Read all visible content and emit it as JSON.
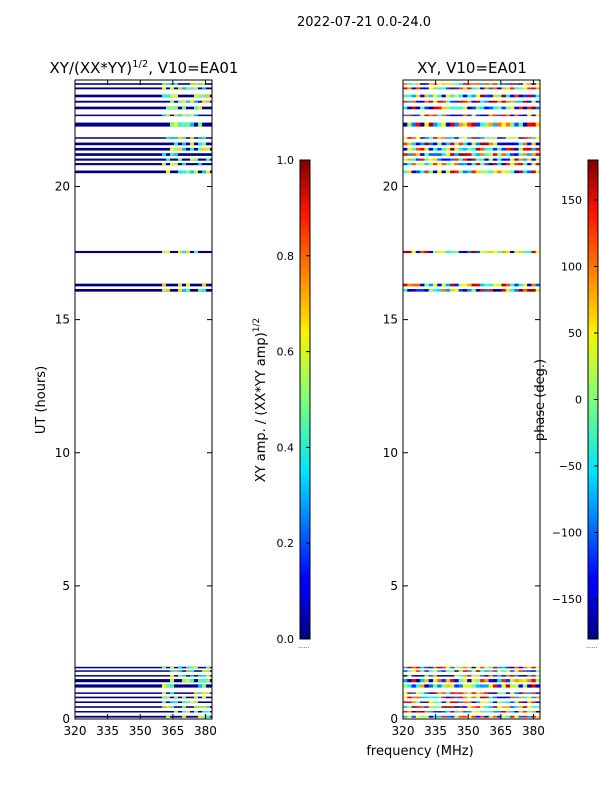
{
  "suptitle": "2022-07-21 0.0-24.0",
  "xlabel": "frequency (MHz)",
  "chart_data": [
    {
      "type": "heatmap",
      "title": "XY/(XX*YY)",
      "title_superscript": "1/2",
      "title_suffix": ", V10=EA01",
      "ylabel": "UT (hours)",
      "xlim": [
        320,
        383
      ],
      "ylim": [
        0,
        24
      ],
      "xticks": [
        320,
        335,
        350,
        365,
        380
      ],
      "yticks": [
        0,
        5,
        10,
        15,
        20
      ],
      "colormap": "jet",
      "colorbar": {
        "label": "XY amp. / (XX*YY amp)",
        "label_superscript": "1/2",
        "range": [
          0.0,
          1.0
        ],
        "ticks": [
          "0.0",
          "0.2",
          "0.4",
          "0.6",
          "0.8",
          "1.0"
        ],
        "bottom_note": "......"
      },
      "data_bands_hours": [
        [
          0.05,
          0.12
        ],
        [
          0.25,
          0.3
        ],
        [
          0.42,
          0.48
        ],
        [
          0.6,
          0.66
        ],
        [
          0.78,
          0.84
        ],
        [
          0.95,
          1.0
        ],
        [
          1.18,
          1.3
        ],
        [
          1.38,
          1.5
        ],
        [
          1.6,
          1.65
        ],
        [
          1.78,
          1.83
        ],
        [
          1.92,
          1.96
        ],
        [
          16.05,
          16.15
        ],
        [
          16.25,
          16.35
        ],
        [
          17.5,
          17.58
        ],
        [
          20.5,
          20.6
        ],
        [
          20.8,
          20.88
        ],
        [
          20.97,
          21.05
        ],
        [
          21.15,
          21.25
        ],
        [
          21.35,
          21.45
        ],
        [
          21.55,
          21.65
        ],
        [
          21.8,
          21.85
        ],
        [
          22.25,
          22.4
        ],
        [
          22.65,
          22.7
        ],
        [
          22.9,
          23.0
        ],
        [
          23.15,
          23.22
        ],
        [
          23.35,
          23.45
        ],
        [
          23.65,
          23.72
        ],
        [
          23.82,
          23.88
        ]
      ],
      "background_value": 0.0,
      "highlight_xrange_mhz": [
        360,
        382
      ],
      "highlight_values_range": [
        0.3,
        0.7
      ]
    },
    {
      "type": "heatmap",
      "title": "XY, V10=EA01",
      "ylabel": "",
      "xlim": [
        320,
        383
      ],
      "ylim": [
        0,
        24
      ],
      "xticks": [
        320,
        335,
        350,
        365,
        380
      ],
      "yticks": [
        0,
        5,
        10,
        15,
        20
      ],
      "colormap": "jet",
      "colorbar": {
        "label": "phase (deg.)",
        "range": [
          -180,
          180
        ],
        "ticks": [
          "−150",
          "−100",
          "−50",
          "0",
          "50",
          "100",
          "150"
        ],
        "tick_values": [
          -150,
          -100,
          -50,
          0,
          50,
          100,
          150
        ],
        "bottom_note": "......"
      },
      "data_bands_hours": [
        [
          0.05,
          0.12
        ],
        [
          0.25,
          0.3
        ],
        [
          0.42,
          0.48
        ],
        [
          0.6,
          0.66
        ],
        [
          0.78,
          0.84
        ],
        [
          0.95,
          1.0
        ],
        [
          1.18,
          1.3
        ],
        [
          1.38,
          1.5
        ],
        [
          1.6,
          1.65
        ],
        [
          1.78,
          1.83
        ],
        [
          1.92,
          1.96
        ],
        [
          16.05,
          16.15
        ],
        [
          16.25,
          16.35
        ],
        [
          17.5,
          17.58
        ],
        [
          20.5,
          20.6
        ],
        [
          20.8,
          20.88
        ],
        [
          20.97,
          21.05
        ],
        [
          21.15,
          21.25
        ],
        [
          21.35,
          21.45
        ],
        [
          21.55,
          21.65
        ],
        [
          21.8,
          21.85
        ],
        [
          22.25,
          22.4
        ],
        [
          22.65,
          22.7
        ],
        [
          22.9,
          23.0
        ],
        [
          23.15,
          23.22
        ],
        [
          23.35,
          23.45
        ],
        [
          23.65,
          23.72
        ],
        [
          23.82,
          23.88
        ]
      ],
      "values_range_deg": [
        -180,
        180
      ]
    }
  ]
}
